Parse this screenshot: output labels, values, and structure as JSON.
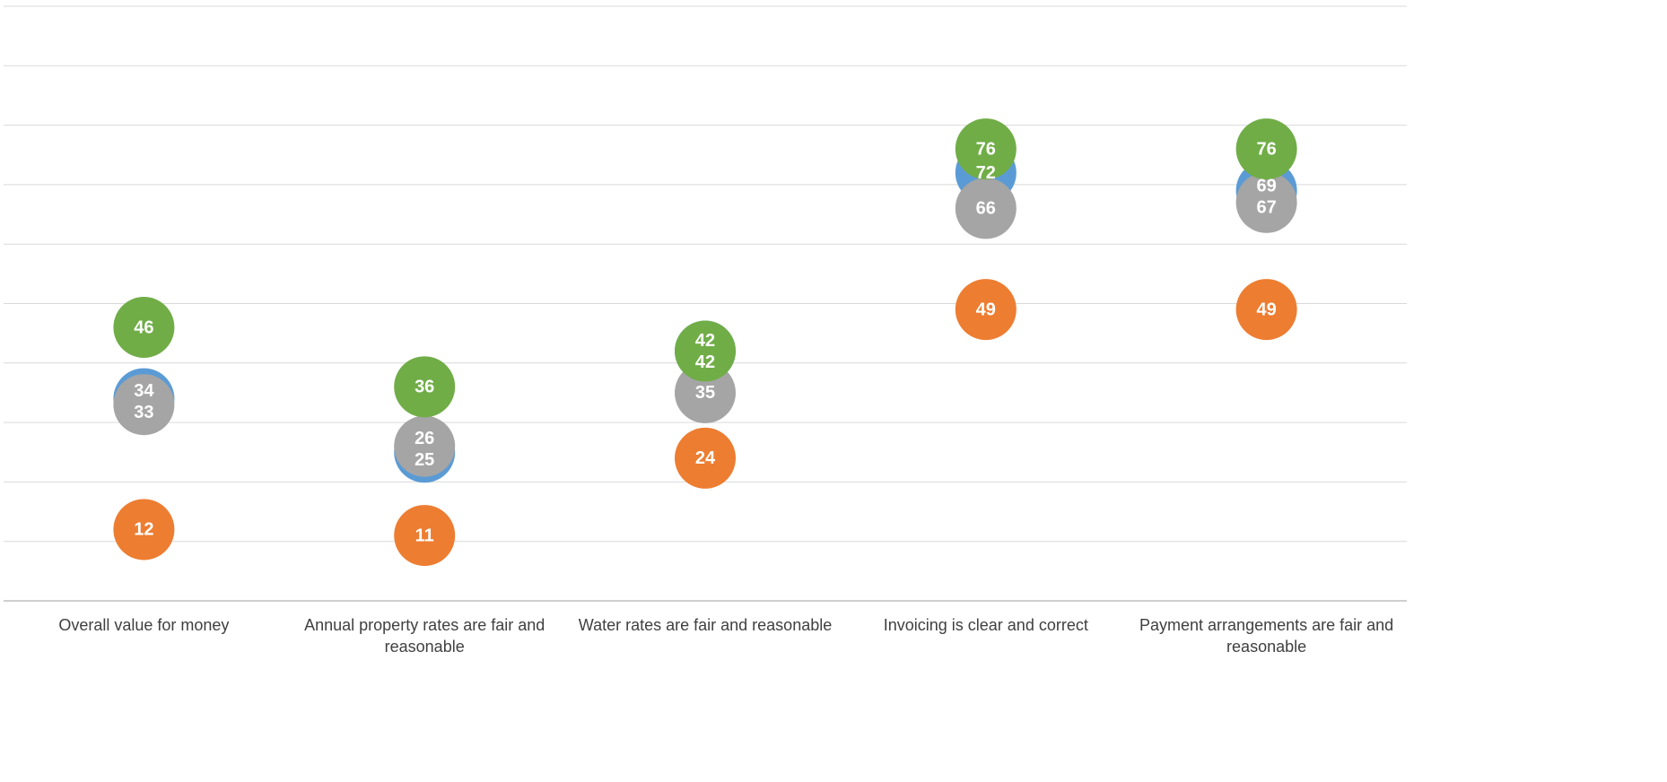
{
  "chart_data": {
    "type": "dot",
    "categories": [
      "Overall value for money",
      "Annual property rates are fair and reasonable",
      "Water rates are fair and reasonable",
      "Invoicing is clear and correct",
      "Payment arrangements are fair and reasonable"
    ],
    "series": [
      {
        "color": "#5b9bd5",
        "values": [
          34,
          25,
          42,
          72,
          69
        ]
      },
      {
        "color": "#ed7d31",
        "values": [
          12,
          11,
          24,
          49,
          49
        ]
      },
      {
        "color": "#a5a5a5",
        "values": [
          33,
          26,
          35,
          66,
          67
        ]
      },
      {
        "color": "#70ad47",
        "values": [
          46,
          36,
          42,
          76,
          76
        ]
      }
    ],
    "ylim": [
      0,
      100
    ],
    "yticks": [
      0,
      10,
      20,
      30,
      40,
      50,
      60,
      70,
      80,
      90,
      100
    ],
    "grid": true
  }
}
